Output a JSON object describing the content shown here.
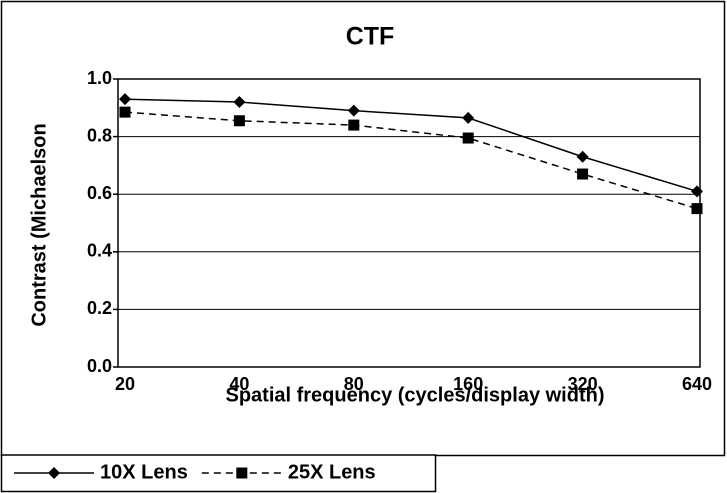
{
  "chart_data": {
    "type": "line",
    "title": "CTF",
    "x_label": "Spatial frequency (cycles/display width)",
    "y_label": "Contrast (Michaelson",
    "categories": [
      "20",
      "40",
      "80",
      "160",
      "320",
      "640"
    ],
    "series": [
      {
        "name": "10X Lens",
        "color": "#000000",
        "line_style": "solid",
        "marker": "diamond",
        "values": [
          0.93,
          0.92,
          0.89,
          0.865,
          0.73,
          0.61
        ]
      },
      {
        "name": "25X Lens",
        "color": "#000000",
        "line_style": "dashed",
        "marker": "square",
        "values": [
          0.885,
          0.855,
          0.84,
          0.795,
          0.67,
          0.55
        ]
      }
    ],
    "ylim": [
      0,
      1
    ],
    "yticks": [
      {
        "value": 0,
        "label": "0.0"
      },
      0.2,
      0.4,
      0.6,
      0.8,
      {
        "value": 1,
        "label": "1.0"
      }
    ],
    "grid": true,
    "legend": "bottom-left"
  }
}
